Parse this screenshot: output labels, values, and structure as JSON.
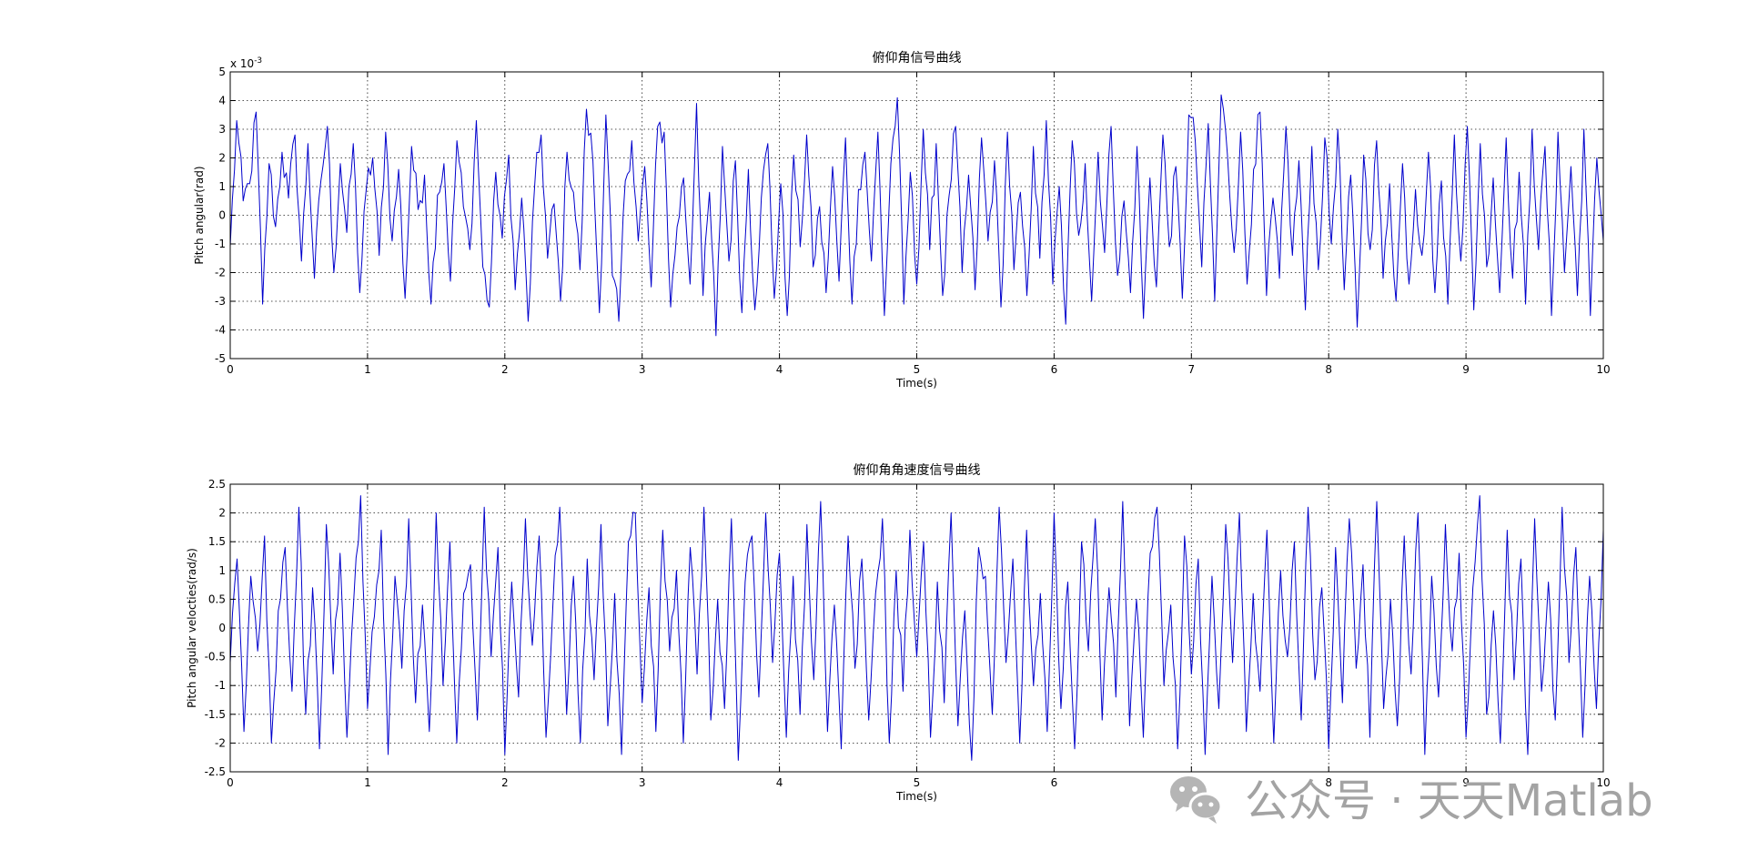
{
  "watermark": {
    "text": "公众号 · 天天Matlab",
    "icon": "wechat-icon",
    "color": "#a3a3a3"
  },
  "line_color": "#0000cc",
  "chart_data": [
    {
      "type": "line",
      "title": "俯仰角信号曲线",
      "xlabel": "Time(s)",
      "ylabel": "Pitch angular(rad)",
      "exponent_label": "x 10",
      "exponent_power": "-3",
      "xlim": [
        0,
        10
      ],
      "ylim": [
        -0.005,
        0.005
      ],
      "x_ticks": [
        0,
        1,
        2,
        3,
        4,
        5,
        6,
        7,
        8,
        9,
        10
      ],
      "x_tick_labels": [
        "0",
        "1",
        "2",
        "3",
        "4",
        "5",
        "6",
        "7",
        "8",
        "9",
        "10"
      ],
      "y_ticks": [
        -0.005,
        -0.004,
        -0.003,
        -0.002,
        -0.001,
        0,
        0.001,
        0.002,
        0.003,
        0.004,
        0.005
      ],
      "y_tick_labels": [
        "-5",
        "-4",
        "-3",
        "-2",
        "-1",
        "0",
        "1",
        "2",
        "3",
        "4",
        "5"
      ],
      "grid": true,
      "series": [
        {
          "x_start": 0,
          "x_end": 10,
          "values": [
            -0.0011,
            0.0033,
            0.0005,
            0.0011,
            0.0036,
            -0.0031,
            0.0018,
            -0.0004,
            0.0022,
            0.0006,
            0.0028,
            -0.0016,
            0.0025,
            -0.0022,
            0.0012,
            0.0031,
            -0.002,
            0.0018,
            -0.0006,
            0.0025,
            -0.0027,
            0.0009,
            0.002,
            -0.0014,
            0.0029,
            -0.0009,
            0.0016,
            -0.0029,
            0.0024,
            0.0002,
            0.0014,
            -0.0031,
            0.0007,
            0.0018,
            -0.0023,
            0.0026,
            0.0003,
            -0.0012,
            0.0033,
            -0.0018,
            -0.0032,
            0.0015,
            -0.0008,
            0.0021,
            -0.0026,
            0.0006,
            -0.0037,
            0.001,
            0.0028,
            -0.0015,
            0.0004,
            -0.003,
            0.0022,
            0.0008,
            -0.0019,
            0.0037,
            0.0019,
            -0.0034,
            0.0035,
            -0.0021,
            -0.0037,
            0.0012,
            0.0026,
            -0.0009,
            0.0017,
            -0.0025,
            0.0031,
            0.0029,
            -0.0032,
            -0.0004,
            0.0013,
            -0.0024,
            0.0039,
            -0.0028,
            0.0008,
            -0.0042,
            0.0024,
            -0.0016,
            0.0019,
            -0.0034,
            0.0016,
            -0.0033,
            0.0006,
            0.0025,
            -0.0029,
            0.0011,
            -0.0035,
            0.0021,
            -0.0011,
            0.0028,
            -0.0018,
            0.0003,
            -0.0027,
            0.0017,
            -0.0023,
            0.0027,
            -0.0031,
            0.0009,
            0.0022,
            -0.0016,
            0.0029,
            -0.0035,
            0.0018,
            0.0041,
            -0.0031,
            0.0015,
            -0.0024,
            0.003,
            -0.0012,
            0.0025,
            -0.0028,
            0.0007,
            0.0031,
            -0.002,
            0.0014,
            -0.0026,
            0.0027,
            -0.0009,
            0.0019,
            -0.0032,
            0.0029,
            -0.0019,
            0.0008,
            -0.0028,
            0.0024,
            -0.0015,
            0.0033,
            -0.0024,
            0.001,
            -0.0038,
            0.0026,
            -0.0007,
            0.0018,
            -0.003,
            0.0022,
            -0.0013,
            0.0031,
            -0.0021,
            0.0005,
            -0.0027,
            0.0024,
            -0.0036,
            0.0013,
            -0.0025,
            0.0028,
            -0.0011,
            0.0017,
            -0.0029,
            0.0035,
            0.0026,
            -0.0018,
            0.0032,
            -0.003,
            0.0042,
            0.002,
            -0.0013,
            0.0029,
            -0.0024,
            0.0016,
            0.0036,
            -0.0028,
            0.0006,
            -0.0022,
            0.0031,
            -0.0014,
            0.0019,
            -0.0033,
            0.0024,
            -0.0019,
            0.0027,
            -0.001,
            0.003,
            -0.0026,
            0.0014,
            -0.0039,
            0.0021,
            -0.0012,
            0.0026,
            -0.0022,
            0.0011,
            -0.003,
            0.0018,
            -0.0024,
            0.0009,
            -0.0014,
            0.0022,
            -0.0027,
            0.0012,
            -0.0031,
            0.0028,
            -0.0016,
            0.0031,
            -0.0033,
            0.0025,
            -0.0018,
            0.0013,
            -0.0027,
            0.0027,
            -0.0022,
            0.0015,
            -0.0031,
            0.003,
            -0.0012,
            0.0024,
            -0.0035,
            0.0029,
            -0.002,
            0.0017,
            -0.0028,
            0.003,
            -0.0035,
            0.002,
            -0.0009
          ]
        }
      ]
    },
    {
      "type": "line",
      "title": "俯仰角角速度信号曲线",
      "xlabel": "Time(s)",
      "ylabel": "Pitch angular velocties(rad/s)",
      "xlim": [
        0,
        10
      ],
      "ylim": [
        -2.5,
        2.5
      ],
      "x_ticks": [
        0,
        1,
        2,
        3,
        4,
        5,
        6,
        7,
        8,
        9,
        10
      ],
      "x_tick_labels": [
        "0",
        "1",
        "2",
        "3",
        "4",
        "5",
        "6",
        "7",
        "8",
        "9",
        "10"
      ],
      "y_ticks": [
        -2.5,
        -2,
        -1.5,
        -1,
        -0.5,
        0,
        0.5,
        1,
        1.5,
        2,
        2.5
      ],
      "y_tick_labels": [
        "-2.5",
        "-2",
        "-1.5",
        "-1",
        "-0.5",
        "0",
        "0.5",
        "1",
        "1.5",
        "2",
        "2.5"
      ],
      "grid": true,
      "series": [
        {
          "x_start": 0,
          "x_end": 10,
          "values": [
            -0.6,
            1.2,
            -1.8,
            0.9,
            -0.4,
            1.6,
            -2.0,
            0.3,
            1.4,
            -1.1,
            2.1,
            -1.5,
            0.7,
            -2.1,
            1.8,
            -0.8,
            1.3,
            -1.9,
            0.5,
            2.3,
            -1.4,
            0.2,
            1.7,
            -2.2,
            0.9,
            -0.7,
            1.9,
            -1.3,
            0.4,
            -1.8,
            2.0,
            -1.0,
            1.5,
            -2.0,
            0.6,
            1.1,
            -1.6,
            2.1,
            -0.5,
            1.4,
            -2.2,
            0.8,
            -1.2,
            1.9,
            -0.3,
            1.6,
            -1.9,
            0.4,
            2.1,
            -1.5,
            0.9,
            -2.0,
            1.2,
            -0.9,
            1.8,
            -1.7,
            0.6,
            -2.2,
            1.5,
            2.0,
            -1.3,
            0.7,
            -1.8,
            1.7,
            -0.4,
            1.0,
            -2.0,
            1.4,
            -0.8,
            2.1,
            -1.6,
            0.5,
            -1.4,
            1.9,
            -2.3,
            0.8,
            1.6,
            -1.2,
            2.0,
            -0.6,
            1.3,
            -1.9,
            0.9,
            -1.5,
            1.8,
            -0.9,
            2.2,
            -1.8,
            0.4,
            -2.1,
            1.6,
            -0.7,
            1.2,
            -1.6,
            0.6,
            1.9,
            -2.0,
            1.0,
            -1.1,
            1.7,
            -0.5,
            1.5,
            -1.9,
            0.8,
            -1.3,
            2.0,
            -1.7,
            0.3,
            -2.3,
            1.4,
            0.9,
            -1.5,
            2.1,
            -0.6,
            1.2,
            -2.0,
            1.7,
            -1.0,
            0.6,
            -1.8,
            2.0,
            -1.4,
            0.8,
            -2.1,
            1.5,
            -0.4,
            1.9,
            -1.6,
            0.7,
            -1.2,
            2.2,
            -1.7,
            0.5,
            -1.9,
            1.3,
            2.1,
            -1.0,
            0.4,
            -2.1,
            1.6,
            -0.8,
            1.2,
            -2.2,
            0.9,
            -1.4,
            1.8,
            -0.6,
            2.0,
            -1.8,
            0.6,
            -1.1,
            1.7,
            -2.0,
            1.0,
            -0.5,
            1.5,
            -1.6,
            2.1,
            -0.9,
            0.7,
            -2.1,
            1.4,
            -1.3,
            1.9,
            -0.7,
            1.1,
            -1.9,
            2.2,
            -1.4,
            0.5,
            -1.7,
            1.6,
            -0.8,
            2.0,
            -2.2,
            0.9,
            -1.2,
            1.8,
            -0.4,
            1.3,
            -1.9,
            0.7,
            2.3,
            -1.5,
            0.3,
            -2.0,
            1.7,
            -0.9,
            1.2,
            -2.2,
            1.9,
            -1.1,
            0.8,
            -1.6,
            2.1,
            -0.6,
            1.4,
            -1.9,
            0.9,
            -1.4,
            1.7
          ]
        }
      ]
    }
  ]
}
